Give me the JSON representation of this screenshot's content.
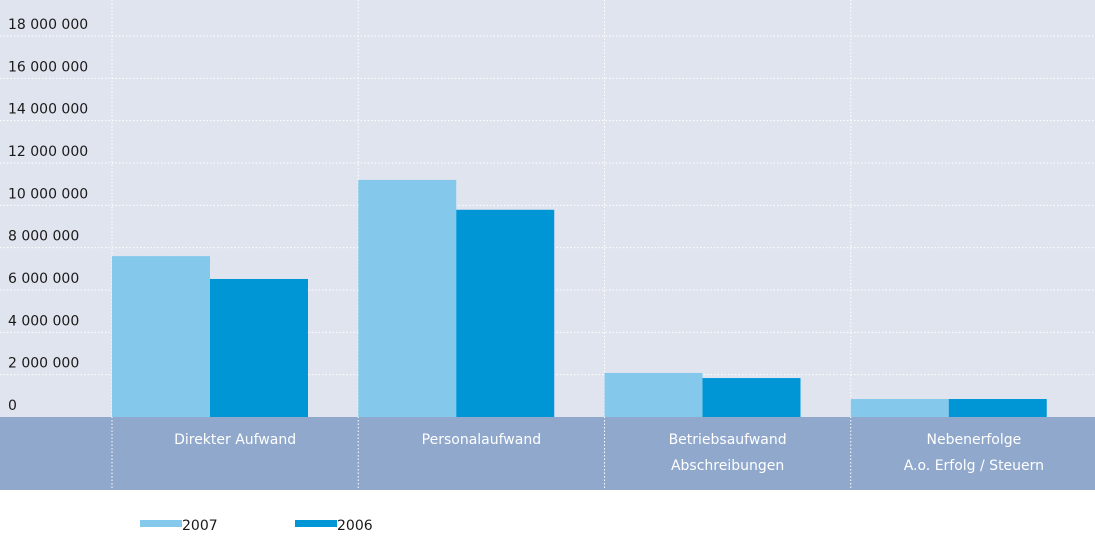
{
  "chart_data": {
    "type": "bar",
    "categories": [
      [
        "Direkter Aufwand"
      ],
      [
        "Personalaufwand"
      ],
      [
        "Betriebsaufwand",
        "Abschreibungen"
      ],
      [
        "Nebenerfolge",
        "A.o. Erfolg / Steuern"
      ]
    ],
    "series": [
      {
        "name": "2007",
        "color": "#84c9eb",
        "values": [
          7600000,
          11200000,
          2080000,
          850000
        ]
      },
      {
        "name": "2006",
        "color": "#0096d6",
        "values": [
          6520000,
          9790000,
          1840000,
          850000
        ]
      }
    ],
    "ylim": [
      0,
      19700000
    ],
    "yticks": [
      0,
      {
        "value": 2000000,
        "label": "2 000 000"
      },
      {
        "value": 4000000,
        "label": "4 000 000"
      },
      {
        "value": 6000000,
        "label": "6 000 000"
      },
      {
        "value": 8000000,
        "label": "8 000 000"
      },
      {
        "value": 10000000,
        "label": "10 000 000"
      },
      {
        "value": 12000000,
        "label": "12 000 000"
      },
      {
        "value": 14000000,
        "label": "14 000 000"
      },
      {
        "value": 16000000,
        "label": "16 000 000"
      },
      {
        "value": 18000000,
        "label": "18 000 000"
      }
    ],
    "grid": true
  }
}
